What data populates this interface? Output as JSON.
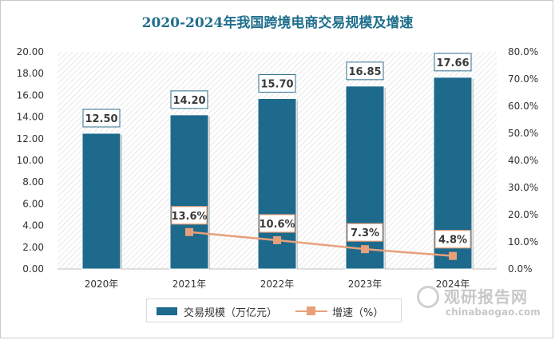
{
  "chart_data": {
    "type": "bar",
    "title": "2020-2024年我国跨境电商交易规模及增速",
    "categories": [
      "2020年",
      "2021年",
      "2022年",
      "2023年",
      "2024年"
    ],
    "series": [
      {
        "name": "交易规模（万亿元）",
        "type": "bar",
        "axis": "left",
        "values": [
          12.5,
          14.2,
          15.7,
          16.85,
          17.66
        ],
        "labels": [
          "12.50",
          "14.20",
          "15.70",
          "16.85",
          "17.66"
        ],
        "color": "#1d6a8d"
      },
      {
        "name": "增速（%）",
        "type": "line",
        "axis": "right",
        "values": [
          null,
          13.6,
          10.6,
          7.3,
          4.8
        ],
        "labels": [
          "",
          "13.6%",
          "10.6%",
          "7.3%",
          "4.8%"
        ],
        "color": "#e8a07a"
      }
    ],
    "ylim_left": [
      0,
      20
    ],
    "ylim_right": [
      0,
      80
    ],
    "left_ticks": [
      "0.00",
      "2.00",
      "4.00",
      "6.00",
      "8.00",
      "10.00",
      "12.00",
      "14.00",
      "16.00",
      "18.00",
      "20.00"
    ],
    "right_ticks": [
      "0.0%",
      "10.0%",
      "20.0%",
      "30.0%",
      "40.0%",
      "50.0%",
      "60.0%",
      "70.0%",
      "80.0%"
    ],
    "legend_position": "bottom"
  },
  "legend": {
    "bar_label": "交易规模（万亿元）",
    "line_label": "增速（%）"
  },
  "watermark": {
    "cn": "观研报告网",
    "en": "chinabaogao.com"
  },
  "colors": {
    "title": "#1f6e8c",
    "bar": "#1d6a8d",
    "line": "#e8a07a"
  }
}
